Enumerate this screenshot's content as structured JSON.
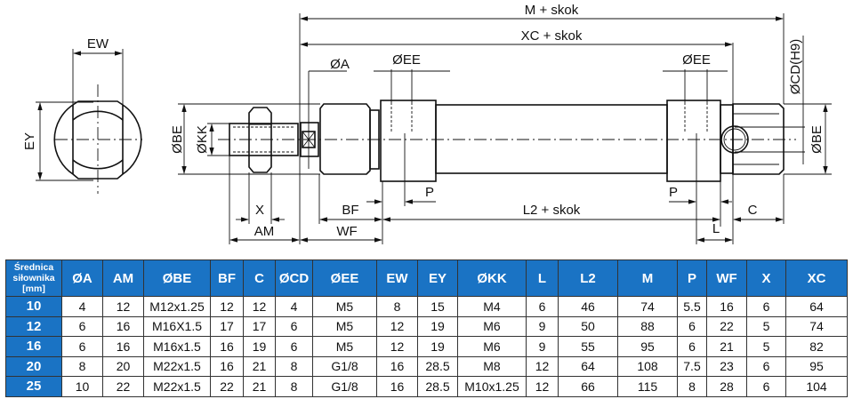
{
  "drawing": {
    "labels": {
      "ew": "EW",
      "ey": "EY",
      "m_stroke": "M + skok",
      "xc_stroke": "XC + skok",
      "a": "ØA",
      "ee_front": "ØEE",
      "ee_rear": "ØEE",
      "cd": "ØCD(H9)",
      "be_front": "ØBE",
      "be_rear": "ØBE",
      "kk": "ØKK",
      "x": "X",
      "am": "AM",
      "bf": "BF",
      "wf": "WF",
      "p_front": "P",
      "p_rear": "P",
      "l2_stroke": "L2 + skok",
      "c": "C",
      "l": "L"
    }
  },
  "table": {
    "header_color": "#1a73c4",
    "first_header_lines": [
      "Średnica",
      "siłownika",
      "[mm]"
    ],
    "columns": [
      "ØA",
      "AM",
      "ØBE",
      "BF",
      "C",
      "ØCD",
      "ØEE",
      "EW",
      "EY",
      "ØKK",
      "L",
      "L2",
      "M",
      "P",
      "WF",
      "X",
      "XC"
    ],
    "rows": [
      {
        "bore": "10",
        "values": [
          "4",
          "12",
          "M12x1.25",
          "12",
          "12",
          "4",
          "M5",
          "8",
          "15",
          "M4",
          "6",
          "46",
          "74",
          "5.5",
          "16",
          "6",
          "64"
        ]
      },
      {
        "bore": "12",
        "values": [
          "6",
          "16",
          "M16X1.5",
          "17",
          "17",
          "6",
          "M5",
          "12",
          "19",
          "M6",
          "9",
          "50",
          "88",
          "6",
          "22",
          "5",
          "74"
        ]
      },
      {
        "bore": "16",
        "values": [
          "6",
          "16",
          "M16x1.5",
          "16",
          "19",
          "6",
          "M5",
          "12",
          "19",
          "M6",
          "9",
          "55",
          "95",
          "6",
          "21",
          "5",
          "82"
        ]
      },
      {
        "bore": "20",
        "values": [
          "8",
          "20",
          "M22x1.5",
          "16",
          "21",
          "8",
          "G1/8",
          "16",
          "28.5",
          "M8",
          "12",
          "64",
          "108",
          "7.5",
          "23",
          "6",
          "95"
        ]
      },
      {
        "bore": "25",
        "values": [
          "10",
          "22",
          "M22x1.5",
          "22",
          "21",
          "8",
          "G1/8",
          "16",
          "28.5",
          "M10x1.25",
          "12",
          "66",
          "115",
          "8",
          "28",
          "6",
          "104"
        ]
      }
    ]
  }
}
